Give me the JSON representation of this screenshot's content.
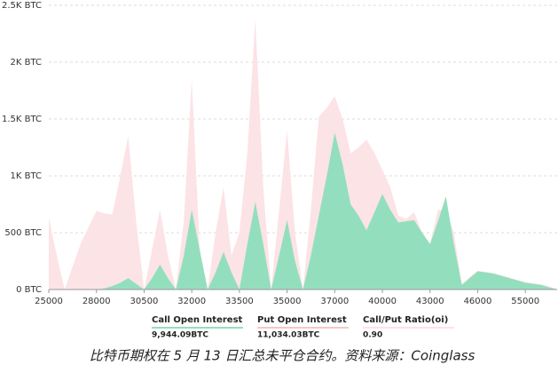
{
  "chart_data": {
    "type": "area",
    "categories": [
      "25000",
      null,
      null,
      null,
      null,
      null,
      "28000",
      null,
      null,
      null,
      null,
      null,
      "30500",
      null,
      null,
      null,
      null,
      null,
      "32000",
      null,
      null,
      null,
      null,
      null,
      "33500",
      null,
      null,
      null,
      null,
      null,
      "35000",
      null,
      null,
      null,
      null,
      null,
      "37000",
      null,
      null,
      null,
      null,
      null,
      "40000",
      null,
      null,
      null,
      null,
      null,
      "43000",
      null,
      null,
      null,
      null,
      null,
      "46000",
      null,
      null,
      null,
      null,
      null,
      "55000",
      null,
      null,
      null,
      null
    ],
    "series": [
      {
        "name": "Put Open Interest",
        "color": "#fce3e5",
        "values": [
          630,
          300,
          0,
          200,
          400,
          550,
          690,
          670,
          660,
          1000,
          1350,
          600,
          0,
          350,
          700,
          300,
          0,
          600,
          1850,
          350,
          0,
          500,
          900,
          300,
          500,
          1200,
          2380,
          900,
          0,
          700,
          1400,
          500,
          0,
          700,
          1520,
          1600,
          1700,
          1500,
          1200,
          1250,
          1320,
          1200,
          1050,
          900,
          650,
          620,
          680,
          500,
          400,
          700,
          700,
          500,
          50,
          110,
          165,
          155,
          145,
          125,
          105,
          85,
          65,
          55,
          45,
          25,
          5
        ]
      },
      {
        "name": "Call Open Interest",
        "color": "#93dfbd",
        "values": [
          0,
          0,
          0,
          0,
          0,
          0,
          0,
          10,
          30,
          60,
          100,
          50,
          0,
          100,
          220,
          100,
          0,
          300,
          700,
          350,
          0,
          150,
          330,
          150,
          0,
          400,
          770,
          400,
          0,
          300,
          610,
          250,
          0,
          300,
          650,
          1000,
          1380,
          1100,
          750,
          650,
          520,
          680,
          840,
          700,
          590,
          600,
          610,
          500,
          400,
          600,
          820,
          400,
          40,
          100,
          160,
          150,
          140,
          120,
          100,
          80,
          60,
          50,
          40,
          20,
          0
        ]
      }
    ],
    "ylim": [
      0,
      2500
    ],
    "yticks": [
      {
        "value": 0,
        "label": "0 BTC"
      },
      {
        "value": 500,
        "label": "500 BTC"
      },
      {
        "value": 1000,
        "label": "1K BTC"
      },
      {
        "value": 1500,
        "label": "1.5K BTC"
      },
      {
        "value": 2000,
        "label": "2K BTC"
      },
      {
        "value": 2500,
        "label": "2.5K BTC"
      }
    ],
    "grid": true,
    "stats": [
      {
        "name": "Call Open Interest",
        "value": "9,944.09BTC",
        "color": "#93dfbd"
      },
      {
        "name": "Put Open Interest",
        "value": "11,034.03BTC",
        "color": "#f6c6cb"
      },
      {
        "name": "Call/Put Ratio(oi)",
        "value": "0.90",
        "color": "#fde3e6"
      }
    ],
    "caption": "比特币期权在 5 月 13 日汇总未平仓合约。资料来源：Coinglass"
  }
}
